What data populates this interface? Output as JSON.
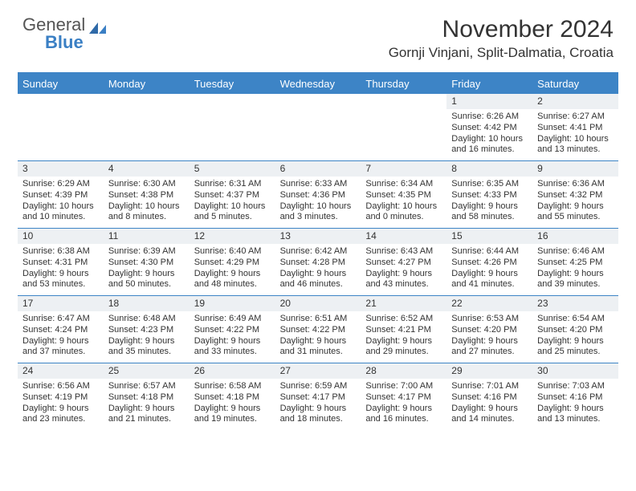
{
  "logo": {
    "word1": "General",
    "word2": "Blue"
  },
  "header": {
    "month_title": "November 2024",
    "location": "Gornji Vinjani, Split-Dalmatia, Croatia"
  },
  "colors": {
    "accent": "#3d84c6",
    "logo_blue": "#3a7fc4",
    "text": "#333333",
    "row_shade": "#edf0f3"
  },
  "day_names": [
    "Sunday",
    "Monday",
    "Tuesday",
    "Wednesday",
    "Thursday",
    "Friday",
    "Saturday"
  ],
  "weeks": [
    [
      {
        "day": "",
        "sunrise": "",
        "sunset": "",
        "daylight1": "",
        "daylight2": ""
      },
      {
        "day": "",
        "sunrise": "",
        "sunset": "",
        "daylight1": "",
        "daylight2": ""
      },
      {
        "day": "",
        "sunrise": "",
        "sunset": "",
        "daylight1": "",
        "daylight2": ""
      },
      {
        "day": "",
        "sunrise": "",
        "sunset": "",
        "daylight1": "",
        "daylight2": ""
      },
      {
        "day": "",
        "sunrise": "",
        "sunset": "",
        "daylight1": "",
        "daylight2": ""
      },
      {
        "day": "1",
        "sunrise": "Sunrise: 6:26 AM",
        "sunset": "Sunset: 4:42 PM",
        "daylight1": "Daylight: 10 hours",
        "daylight2": "and 16 minutes."
      },
      {
        "day": "2",
        "sunrise": "Sunrise: 6:27 AM",
        "sunset": "Sunset: 4:41 PM",
        "daylight1": "Daylight: 10 hours",
        "daylight2": "and 13 minutes."
      }
    ],
    [
      {
        "day": "3",
        "sunrise": "Sunrise: 6:29 AM",
        "sunset": "Sunset: 4:39 PM",
        "daylight1": "Daylight: 10 hours",
        "daylight2": "and 10 minutes."
      },
      {
        "day": "4",
        "sunrise": "Sunrise: 6:30 AM",
        "sunset": "Sunset: 4:38 PM",
        "daylight1": "Daylight: 10 hours",
        "daylight2": "and 8 minutes."
      },
      {
        "day": "5",
        "sunrise": "Sunrise: 6:31 AM",
        "sunset": "Sunset: 4:37 PM",
        "daylight1": "Daylight: 10 hours",
        "daylight2": "and 5 minutes."
      },
      {
        "day": "6",
        "sunrise": "Sunrise: 6:33 AM",
        "sunset": "Sunset: 4:36 PM",
        "daylight1": "Daylight: 10 hours",
        "daylight2": "and 3 minutes."
      },
      {
        "day": "7",
        "sunrise": "Sunrise: 6:34 AM",
        "sunset": "Sunset: 4:35 PM",
        "daylight1": "Daylight: 10 hours",
        "daylight2": "and 0 minutes."
      },
      {
        "day": "8",
        "sunrise": "Sunrise: 6:35 AM",
        "sunset": "Sunset: 4:33 PM",
        "daylight1": "Daylight: 9 hours",
        "daylight2": "and 58 minutes."
      },
      {
        "day": "9",
        "sunrise": "Sunrise: 6:36 AM",
        "sunset": "Sunset: 4:32 PM",
        "daylight1": "Daylight: 9 hours",
        "daylight2": "and 55 minutes."
      }
    ],
    [
      {
        "day": "10",
        "sunrise": "Sunrise: 6:38 AM",
        "sunset": "Sunset: 4:31 PM",
        "daylight1": "Daylight: 9 hours",
        "daylight2": "and 53 minutes."
      },
      {
        "day": "11",
        "sunrise": "Sunrise: 6:39 AM",
        "sunset": "Sunset: 4:30 PM",
        "daylight1": "Daylight: 9 hours",
        "daylight2": "and 50 minutes."
      },
      {
        "day": "12",
        "sunrise": "Sunrise: 6:40 AM",
        "sunset": "Sunset: 4:29 PM",
        "daylight1": "Daylight: 9 hours",
        "daylight2": "and 48 minutes."
      },
      {
        "day": "13",
        "sunrise": "Sunrise: 6:42 AM",
        "sunset": "Sunset: 4:28 PM",
        "daylight1": "Daylight: 9 hours",
        "daylight2": "and 46 minutes."
      },
      {
        "day": "14",
        "sunrise": "Sunrise: 6:43 AM",
        "sunset": "Sunset: 4:27 PM",
        "daylight1": "Daylight: 9 hours",
        "daylight2": "and 43 minutes."
      },
      {
        "day": "15",
        "sunrise": "Sunrise: 6:44 AM",
        "sunset": "Sunset: 4:26 PM",
        "daylight1": "Daylight: 9 hours",
        "daylight2": "and 41 minutes."
      },
      {
        "day": "16",
        "sunrise": "Sunrise: 6:46 AM",
        "sunset": "Sunset: 4:25 PM",
        "daylight1": "Daylight: 9 hours",
        "daylight2": "and 39 minutes."
      }
    ],
    [
      {
        "day": "17",
        "sunrise": "Sunrise: 6:47 AM",
        "sunset": "Sunset: 4:24 PM",
        "daylight1": "Daylight: 9 hours",
        "daylight2": "and 37 minutes."
      },
      {
        "day": "18",
        "sunrise": "Sunrise: 6:48 AM",
        "sunset": "Sunset: 4:23 PM",
        "daylight1": "Daylight: 9 hours",
        "daylight2": "and 35 minutes."
      },
      {
        "day": "19",
        "sunrise": "Sunrise: 6:49 AM",
        "sunset": "Sunset: 4:22 PM",
        "daylight1": "Daylight: 9 hours",
        "daylight2": "and 33 minutes."
      },
      {
        "day": "20",
        "sunrise": "Sunrise: 6:51 AM",
        "sunset": "Sunset: 4:22 PM",
        "daylight1": "Daylight: 9 hours",
        "daylight2": "and 31 minutes."
      },
      {
        "day": "21",
        "sunrise": "Sunrise: 6:52 AM",
        "sunset": "Sunset: 4:21 PM",
        "daylight1": "Daylight: 9 hours",
        "daylight2": "and 29 minutes."
      },
      {
        "day": "22",
        "sunrise": "Sunrise: 6:53 AM",
        "sunset": "Sunset: 4:20 PM",
        "daylight1": "Daylight: 9 hours",
        "daylight2": "and 27 minutes."
      },
      {
        "day": "23",
        "sunrise": "Sunrise: 6:54 AM",
        "sunset": "Sunset: 4:20 PM",
        "daylight1": "Daylight: 9 hours",
        "daylight2": "and 25 minutes."
      }
    ],
    [
      {
        "day": "24",
        "sunrise": "Sunrise: 6:56 AM",
        "sunset": "Sunset: 4:19 PM",
        "daylight1": "Daylight: 9 hours",
        "daylight2": "and 23 minutes."
      },
      {
        "day": "25",
        "sunrise": "Sunrise: 6:57 AM",
        "sunset": "Sunset: 4:18 PM",
        "daylight1": "Daylight: 9 hours",
        "daylight2": "and 21 minutes."
      },
      {
        "day": "26",
        "sunrise": "Sunrise: 6:58 AM",
        "sunset": "Sunset: 4:18 PM",
        "daylight1": "Daylight: 9 hours",
        "daylight2": "and 19 minutes."
      },
      {
        "day": "27",
        "sunrise": "Sunrise: 6:59 AM",
        "sunset": "Sunset: 4:17 PM",
        "daylight1": "Daylight: 9 hours",
        "daylight2": "and 18 minutes."
      },
      {
        "day": "28",
        "sunrise": "Sunrise: 7:00 AM",
        "sunset": "Sunset: 4:17 PM",
        "daylight1": "Daylight: 9 hours",
        "daylight2": "and 16 minutes."
      },
      {
        "day": "29",
        "sunrise": "Sunrise: 7:01 AM",
        "sunset": "Sunset: 4:16 PM",
        "daylight1": "Daylight: 9 hours",
        "daylight2": "and 14 minutes."
      },
      {
        "day": "30",
        "sunrise": "Sunrise: 7:03 AM",
        "sunset": "Sunset: 4:16 PM",
        "daylight1": "Daylight: 9 hours",
        "daylight2": "and 13 minutes."
      }
    ]
  ]
}
